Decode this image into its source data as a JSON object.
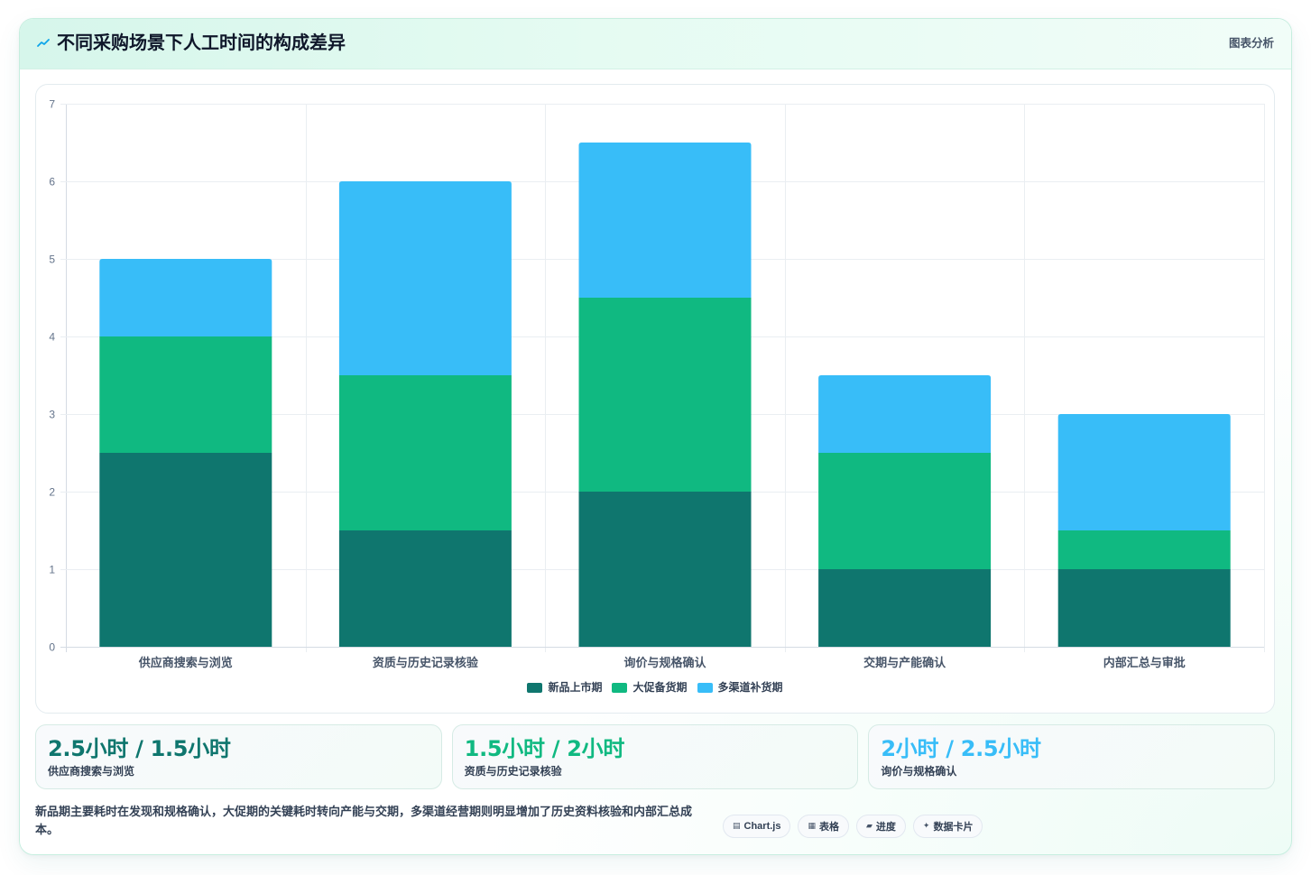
{
  "header": {
    "icon": "trend-icon",
    "title": "不同采购场景下人工时间的构成差异",
    "action_label": "图表分析"
  },
  "chart_data": {
    "type": "bar",
    "stacked": true,
    "categories": [
      "供应商搜索与浏览",
      "资质与历史记录核验",
      "询价与规格确认",
      "交期与产能确认",
      "内部汇总与审批"
    ],
    "series": [
      {
        "name": "新品上市期",
        "color": "#0f766e",
        "values": [
          2.5,
          1.5,
          2,
          1,
          1
        ]
      },
      {
        "name": "大促备货期",
        "color": "#10b981",
        "values": [
          1.5,
          2,
          2.5,
          1.5,
          0.5
        ]
      },
      {
        "name": "多渠道补货期",
        "color": "#38bdf8",
        "values": [
          1,
          2.5,
          2,
          1,
          1.5
        ]
      }
    ],
    "ylim": [
      0,
      7
    ],
    "yticks": [
      0,
      1,
      2,
      3,
      4,
      5,
      6,
      7
    ],
    "grid": true,
    "legend": "bottom-center"
  },
  "stats": [
    {
      "value": "2.5小时 / 1.5小时",
      "label": "供应商搜索与浏览",
      "color": "#0f766e"
    },
    {
      "value": "1.5小时 / 2小时",
      "label": "资质与历史记录核验",
      "color": "#10b981"
    },
    {
      "value": "2小时 / 2.5小时",
      "label": "询价与规格确认",
      "color": "#38bdf8"
    }
  ],
  "footer": {
    "note": "新品期主要耗时在发现和规格确认，大促期的关键耗时转向产能与交期，多渠道经营期则明显增加了历史资料核验和内部汇总成本。",
    "tags": [
      {
        "icon": "chart-icon",
        "glyph": "▤",
        "label": "Chart.js"
      },
      {
        "icon": "table-icon",
        "glyph": "▦",
        "label": "表格"
      },
      {
        "icon": "progress-icon",
        "glyph": "▰",
        "label": "进度"
      },
      {
        "icon": "card-icon",
        "glyph": "✦",
        "label": "数据卡片"
      }
    ]
  }
}
